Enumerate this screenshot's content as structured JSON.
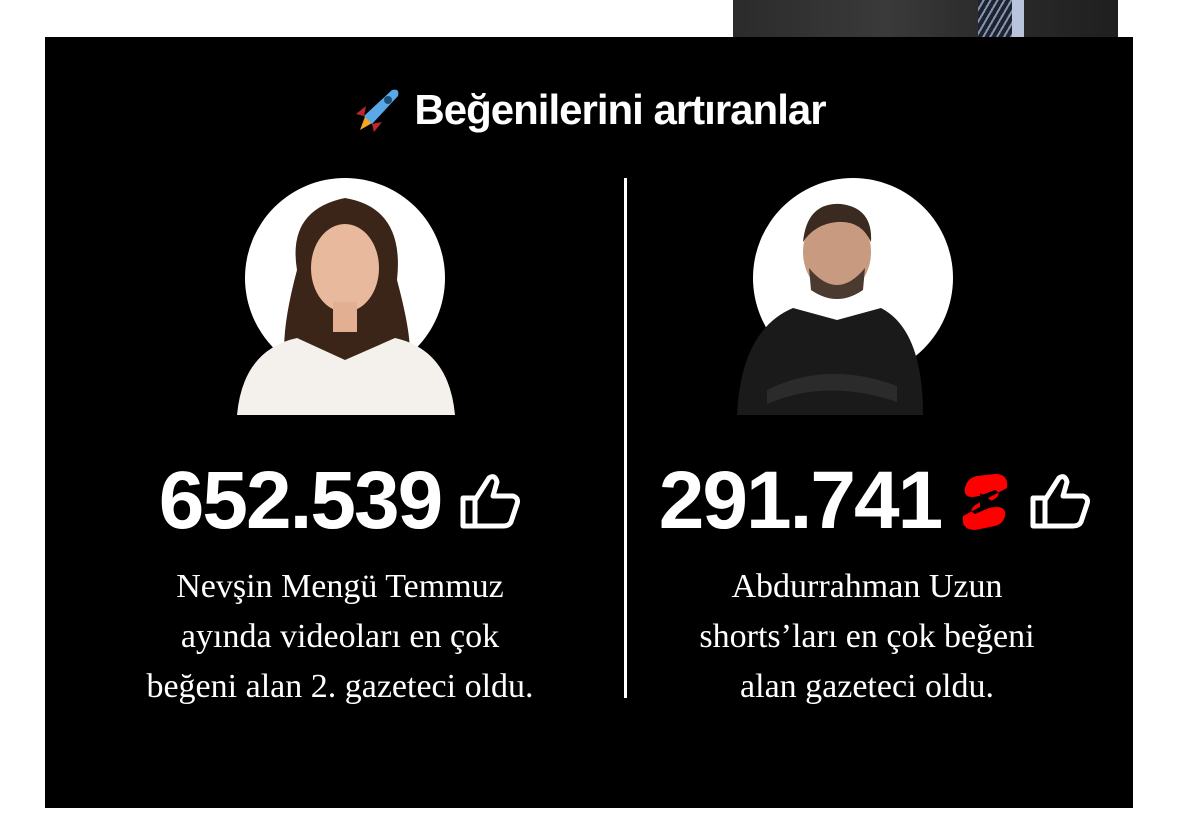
{
  "title": {
    "icon": "rocket-icon",
    "text": "Beğenilerini artıranlar"
  },
  "cards": [
    {
      "value": "652.539",
      "icons": [
        "thumbs-up-icon"
      ],
      "description_lines": [
        "Nevşin Mengü Temmuz",
        "ayında videoları en çok",
        "beğeni alan 2. gazeteci oldu."
      ]
    },
    {
      "value": "291.741",
      "icons": [
        "youtube-shorts-icon",
        "thumbs-up-icon"
      ],
      "description_lines": [
        "Abdurrahman Uzun",
        "shorts’ları en çok beğeni",
        "alan gazeteci oldu."
      ]
    }
  ],
  "colors": {
    "background": "#000000",
    "text": "#ffffff",
    "shorts": "#ff0000"
  }
}
